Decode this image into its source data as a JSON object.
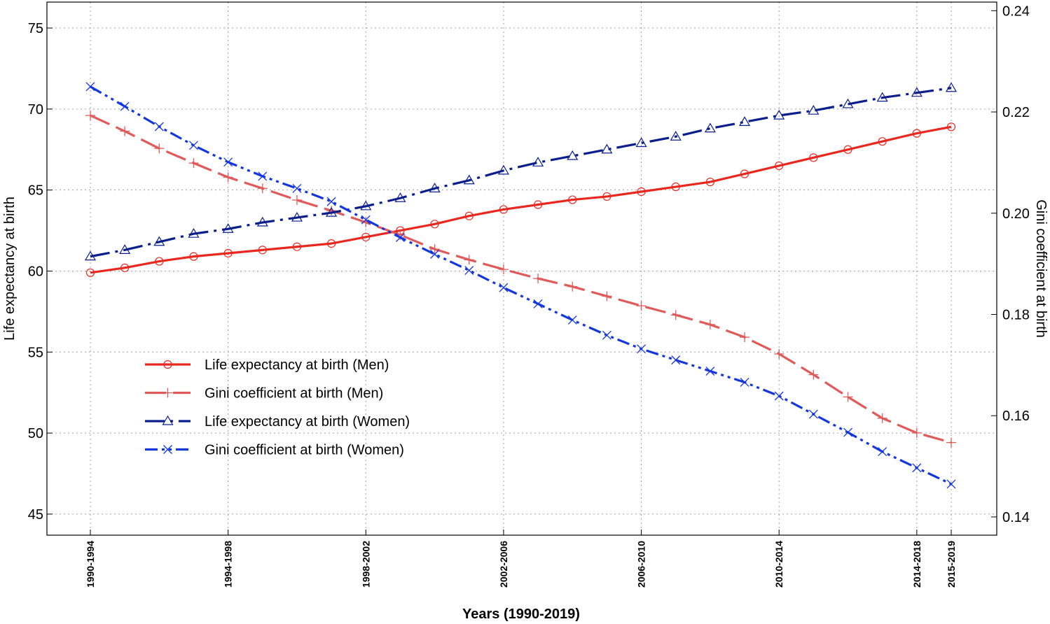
{
  "chart_data": {
    "type": "line",
    "xlabel": "Years (1990-2019)",
    "ylabel_left": "Life expectancy at birth",
    "ylabel_right": "Gini coefficient at birth",
    "x_tick_labels": [
      "1990-1994",
      "1994-1998",
      "1998-2002",
      "2002-2006",
      "2006-2010",
      "2010-2014",
      "2014-2018",
      "2015-2019"
    ],
    "n_points": 26,
    "ylim_left": [
      43.7,
      76.6
    ],
    "ylim_right": [
      0.1364,
      0.2417
    ],
    "yticks_left": [
      45,
      50,
      55,
      60,
      65,
      70,
      75
    ],
    "yticks_left_labels": [
      "45",
      "50",
      "55",
      "60",
      "65",
      "70",
      "75"
    ],
    "yticks_right": [
      0.14,
      0.16,
      0.18,
      0.2,
      0.22,
      0.24
    ],
    "yticks_right_labels": [
      "0.14",
      "0.16",
      "0.18",
      "0.20",
      "0.22",
      "0.24"
    ],
    "grid": true,
    "legend_position": "lower-left",
    "series": [
      {
        "name": "Life expectancy at birth (Men)",
        "axis": "left",
        "color": "#e8281e",
        "dash": "solid",
        "marker": "circle",
        "values": [
          59.9,
          60.2,
          60.6,
          60.9,
          61.1,
          61.3,
          61.5,
          61.7,
          62.1,
          62.5,
          62.9,
          63.4,
          63.8,
          64.1,
          64.4,
          64.6,
          64.9,
          65.2,
          65.5,
          66.0,
          66.5,
          67.0,
          67.5,
          68.0,
          68.5,
          68.9
        ]
      },
      {
        "name": "Gini coefficient at birth (Men)",
        "axis": "right",
        "color": "#e05a5a",
        "dash": "longdash",
        "marker": "plus",
        "values": [
          0.2193,
          0.2162,
          0.2128,
          0.2099,
          0.2071,
          0.2049,
          0.2026,
          0.2005,
          0.1982,
          0.1957,
          0.1929,
          0.1908,
          0.1889,
          0.1871,
          0.1855,
          0.1836,
          0.1817,
          0.1799,
          0.178,
          0.1755,
          0.1722,
          0.1681,
          0.1637,
          0.1595,
          0.1566,
          0.1547
        ]
      },
      {
        "name": "Life expectancy at birth (Women)",
        "axis": "left",
        "color": "#0a1e8c",
        "dash": "dashdot",
        "marker": "triangle",
        "values": [
          60.9,
          61.3,
          61.8,
          62.3,
          62.6,
          63.0,
          63.3,
          63.6,
          64.0,
          64.5,
          65.1,
          65.6,
          66.2,
          66.7,
          67.1,
          67.5,
          67.9,
          68.3,
          68.8,
          69.2,
          69.6,
          69.9,
          70.3,
          70.7,
          71.0,
          71.3
        ]
      },
      {
        "name": "Gini coefficient at birth (Women)",
        "axis": "right",
        "color": "#1437dc",
        "dash": "dashdotdot",
        "marker": "x",
        "values": [
          0.225,
          0.2211,
          0.2171,
          0.2134,
          0.2101,
          0.2073,
          0.2049,
          0.2023,
          0.1987,
          0.1952,
          0.1919,
          0.1887,
          0.1853,
          0.1821,
          0.1789,
          0.1759,
          0.1732,
          0.171,
          0.1688,
          0.1666,
          0.1639,
          0.1603,
          0.1567,
          0.1529,
          0.1497,
          0.1465
        ]
      }
    ]
  }
}
